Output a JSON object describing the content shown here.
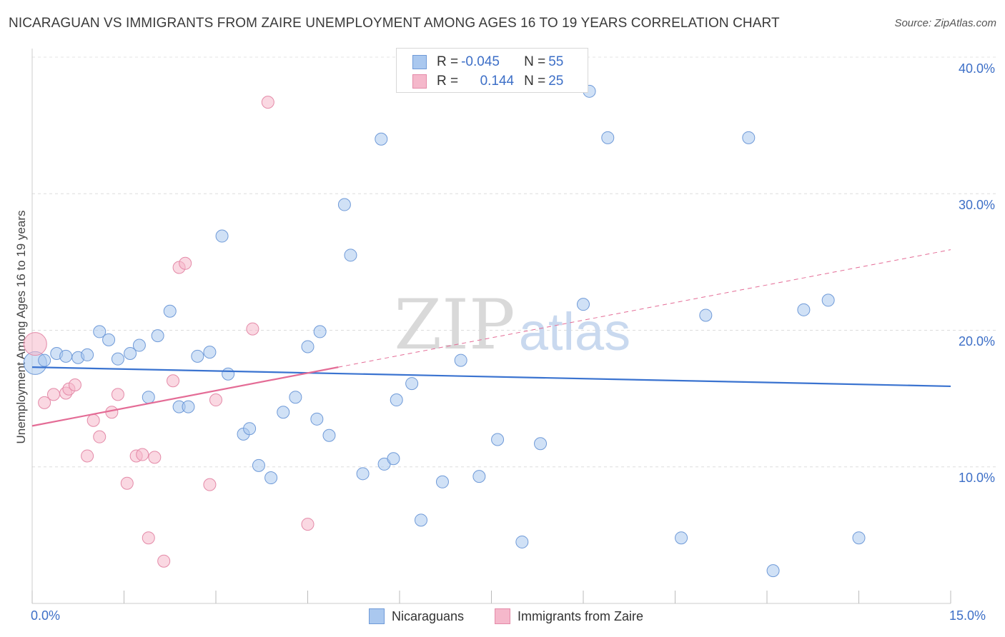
{
  "title": "NICARAGUAN VS IMMIGRANTS FROM ZAIRE UNEMPLOYMENT AMONG AGES 16 TO 19 YEARS CORRELATION CHART",
  "source": "Source: ZipAtlas.com",
  "watermark": {
    "zip": "ZIP",
    "atlas": "atlas"
  },
  "colors": {
    "blue": "#3a73d0",
    "blue_fill": "#aac8ef",
    "pink": "#e46c96",
    "pink_fill": "#f5b8cb",
    "tick": "#3d6fc7"
  },
  "legend_top": {
    "rows": [
      {
        "r_label": "R = ",
        "r_value": "-0.045",
        "n_label": "N = ",
        "n_value": "55"
      },
      {
        "r_label": "R = ",
        "r_value": "0.144",
        "n_label": "N = ",
        "n_value": "25"
      }
    ]
  },
  "legend_bottom": {
    "series1": "Nicaraguans",
    "series2": "Immigrants from Zaire"
  },
  "chart_data": {
    "type": "scatter",
    "title": "NICARAGUAN VS IMMIGRANTS FROM ZAIRE UNEMPLOYMENT AMONG AGES 16 TO 19 YEARS CORRELATION CHART",
    "xlabel": "",
    "ylabel": "Unemployment Among Ages 16 to 19 years",
    "xlim": [
      0,
      15
    ],
    "ylim": [
      0,
      40
    ],
    "x_tick_labels": [
      "0.0%",
      "15.0%"
    ],
    "y_ticks": [
      10,
      20,
      30,
      40
    ],
    "y_tick_labels": [
      "10.0%",
      "20.0%",
      "30.0%",
      "40.0%"
    ],
    "series": [
      {
        "name": "Nicaraguans",
        "R": -0.045,
        "N": 55,
        "trend": {
          "x": [
            0,
            15
          ],
          "y": [
            17.3,
            15.9
          ]
        },
        "points": [
          {
            "x": 0.05,
            "y": 17.6,
            "big": true
          },
          {
            "x": 0.2,
            "y": 17.8
          },
          {
            "x": 0.4,
            "y": 18.3
          },
          {
            "x": 0.55,
            "y": 18.1
          },
          {
            "x": 0.75,
            "y": 18.0
          },
          {
            "x": 0.9,
            "y": 18.2
          },
          {
            "x": 1.1,
            "y": 19.9
          },
          {
            "x": 1.25,
            "y": 19.3
          },
          {
            "x": 1.4,
            "y": 17.9
          },
          {
            "x": 1.6,
            "y": 18.3
          },
          {
            "x": 1.75,
            "y": 18.9
          },
          {
            "x": 1.9,
            "y": 15.1
          },
          {
            "x": 2.05,
            "y": 19.6
          },
          {
            "x": 2.25,
            "y": 21.4
          },
          {
            "x": 2.4,
            "y": 14.4
          },
          {
            "x": 2.55,
            "y": 14.4
          },
          {
            "x": 2.7,
            "y": 18.1
          },
          {
            "x": 2.9,
            "y": 18.4
          },
          {
            "x": 3.1,
            "y": 26.9
          },
          {
            "x": 3.2,
            "y": 16.8
          },
          {
            "x": 3.45,
            "y": 12.4
          },
          {
            "x": 3.55,
            "y": 12.8
          },
          {
            "x": 3.7,
            "y": 10.1
          },
          {
            "x": 3.9,
            "y": 9.2
          },
          {
            "x": 4.1,
            "y": 14.0
          },
          {
            "x": 4.3,
            "y": 15.1
          },
          {
            "x": 4.5,
            "y": 18.8
          },
          {
            "x": 4.65,
            "y": 13.5
          },
          {
            "x": 4.7,
            "y": 19.9
          },
          {
            "x": 4.85,
            "y": 12.3
          },
          {
            "x": 5.1,
            "y": 29.2
          },
          {
            "x": 5.2,
            "y": 25.5
          },
          {
            "x": 5.4,
            "y": 9.5
          },
          {
            "x": 5.7,
            "y": 34.0
          },
          {
            "x": 5.75,
            "y": 10.2
          },
          {
            "x": 5.9,
            "y": 10.6
          },
          {
            "x": 5.95,
            "y": 14.9
          },
          {
            "x": 6.2,
            "y": 16.1
          },
          {
            "x": 6.35,
            "y": 6.1
          },
          {
            "x": 6.7,
            "y": 8.9
          },
          {
            "x": 7.0,
            "y": 17.8
          },
          {
            "x": 7.3,
            "y": 9.3
          },
          {
            "x": 7.6,
            "y": 12.0
          },
          {
            "x": 8.0,
            "y": 4.5
          },
          {
            "x": 8.3,
            "y": 11.7
          },
          {
            "x": 9.1,
            "y": 37.5
          },
          {
            "x": 9.0,
            "y": 21.9
          },
          {
            "x": 9.4,
            "y": 34.1
          },
          {
            "x": 10.6,
            "y": 4.8
          },
          {
            "x": 11.0,
            "y": 21.1
          },
          {
            "x": 11.7,
            "y": 34.1
          },
          {
            "x": 12.1,
            "y": 2.4
          },
          {
            "x": 12.6,
            "y": 21.5
          },
          {
            "x": 13.0,
            "y": 22.2
          },
          {
            "x": 13.5,
            "y": 4.8
          }
        ]
      },
      {
        "name": "Immigrants from Zaire",
        "R": 0.144,
        "N": 25,
        "trend": {
          "x": [
            0,
            5.0
          ],
          "y": [
            13.0,
            17.3
          ]
        },
        "trend_extension": {
          "x": [
            5.0,
            15
          ],
          "y": [
            17.3,
            25.9
          ]
        },
        "points": [
          {
            "x": 0.05,
            "y": 19.0,
            "big": true
          },
          {
            "x": 0.2,
            "y": 14.7
          },
          {
            "x": 0.35,
            "y": 15.3
          },
          {
            "x": 0.55,
            "y": 15.4
          },
          {
            "x": 0.6,
            "y": 15.7
          },
          {
            "x": 0.7,
            "y": 16.0
          },
          {
            "x": 0.9,
            "y": 10.8
          },
          {
            "x": 1.0,
            "y": 13.4
          },
          {
            "x": 1.1,
            "y": 12.2
          },
          {
            "x": 1.3,
            "y": 14.0
          },
          {
            "x": 1.4,
            "y": 15.3
          },
          {
            "x": 1.55,
            "y": 8.8
          },
          {
            "x": 1.7,
            "y": 10.8
          },
          {
            "x": 1.8,
            "y": 10.9
          },
          {
            "x": 1.9,
            "y": 4.8
          },
          {
            "x": 2.0,
            "y": 10.7
          },
          {
            "x": 2.15,
            "y": 3.1
          },
          {
            "x": 2.3,
            "y": 16.3
          },
          {
            "x": 2.4,
            "y": 24.6
          },
          {
            "x": 2.5,
            "y": 24.9
          },
          {
            "x": 2.9,
            "y": 8.7
          },
          {
            "x": 3.0,
            "y": 14.9
          },
          {
            "x": 3.6,
            "y": 20.1
          },
          {
            "x": 3.85,
            "y": 36.7
          },
          {
            "x": 4.5,
            "y": 5.8
          }
        ]
      }
    ]
  }
}
